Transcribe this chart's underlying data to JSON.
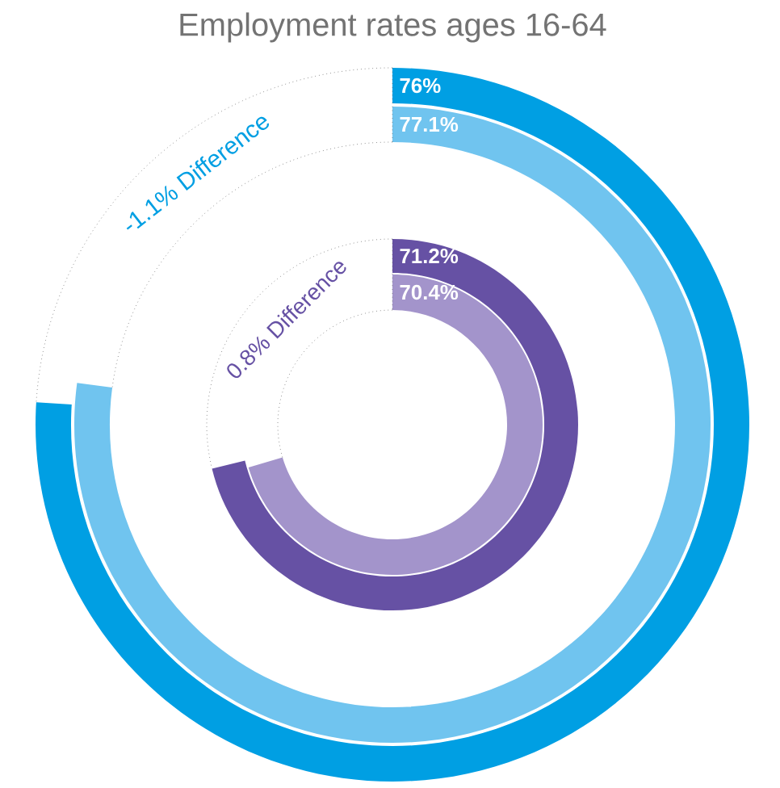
{
  "chart_data": {
    "type": "other",
    "title": "Employment rates ages 16-64",
    "categories": [
      null,
      null,
      null,
      null
    ],
    "values": [
      76,
      77.1,
      71.2,
      70.4
    ],
    "colors": [
      "#009fe3",
      "#70c4ef",
      "#6651a4",
      "#a394cb"
    ],
    "value_labels": [
      "76%",
      "77.1%",
      "71.2%",
      "70.4%"
    ],
    "annotations": [
      "-1.1% Difference",
      "0.8% Difference"
    ]
  }
}
